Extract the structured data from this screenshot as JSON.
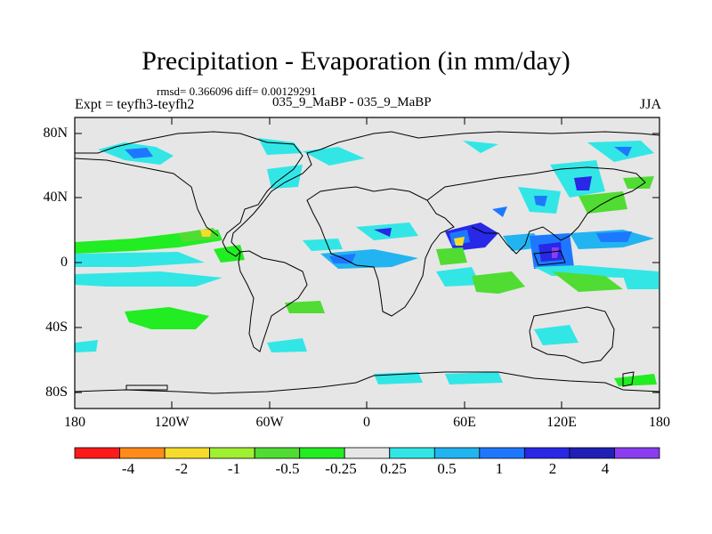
{
  "title": "Precipitation - Evaporation (in mm/day)",
  "stats_line": "rmsd= 0.366096 diff= 0.00129291",
  "case_line": "035_9_MaBP - 035_9_MaBP",
  "experiment": "Expt = teyfh3-teyfh2",
  "season": "JJA",
  "axes": {
    "lat_ticks": [
      "80N",
      "40N",
      "0",
      "40S",
      "80S"
    ],
    "lon_ticks": [
      "180",
      "120W",
      "60W",
      "0",
      "60E",
      "120E",
      "180"
    ]
  },
  "colorbar": {
    "colors": [
      "#ff1a1a",
      "#ff8c1a",
      "#f5dc2a",
      "#a0f032",
      "#50dc32",
      "#22ec22",
      "#e6e6e6",
      "#32e6e6",
      "#22b4f0",
      "#1e78ff",
      "#2828e6",
      "#2020b4",
      "#8c3cf0"
    ],
    "labels": [
      "-4",
      "-2",
      "-1",
      "-0.5",
      "-0.25",
      "0.25",
      "0.5",
      "1",
      "2",
      "4"
    ]
  },
  "colors": {
    "ocean_land": "#e6e6e6",
    "coast": "#000000"
  }
}
